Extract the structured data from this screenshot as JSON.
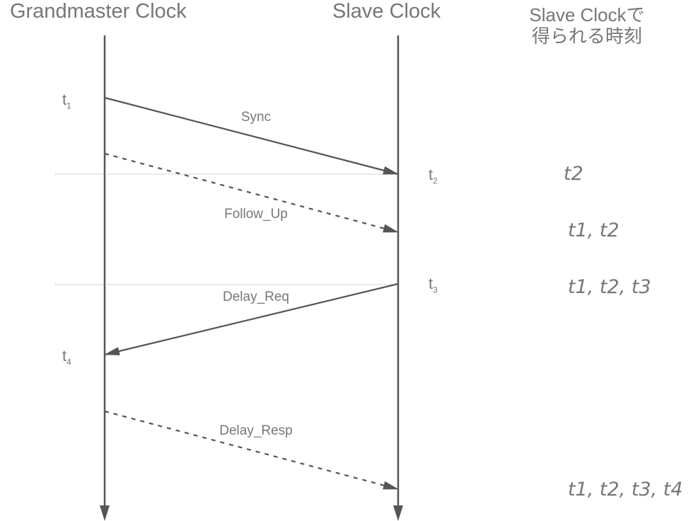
{
  "headers": {
    "grandmaster": "Grandmaster Clock",
    "slave": "Slave Clock",
    "obtained_line1": "Slave Clockで",
    "obtained_line2": "得られる時刻"
  },
  "timestamps": [
    {
      "base": "t",
      "sub": "1"
    },
    {
      "base": "t",
      "sub": "2"
    },
    {
      "base": "t",
      "sub": "3"
    },
    {
      "base": "t",
      "sub": "4"
    }
  ],
  "messages": [
    {
      "label": "Sync",
      "from": "grandmaster",
      "to": "slave",
      "style": "solid"
    },
    {
      "label": "Follow_Up",
      "from": "grandmaster",
      "to": "slave",
      "style": "dashed"
    },
    {
      "label": "Delay_Req",
      "from": "slave",
      "to": "grandmaster",
      "style": "solid"
    },
    {
      "label": "Delay_Resp",
      "from": "grandmaster",
      "to": "slave",
      "style": "dashed"
    }
  ],
  "obtained": [
    "t2",
    "t1, t2",
    "t1, t2, t3",
    "t1, t2, t3, t4"
  ],
  "colors": {
    "line": "#555555",
    "text": "#777777"
  }
}
